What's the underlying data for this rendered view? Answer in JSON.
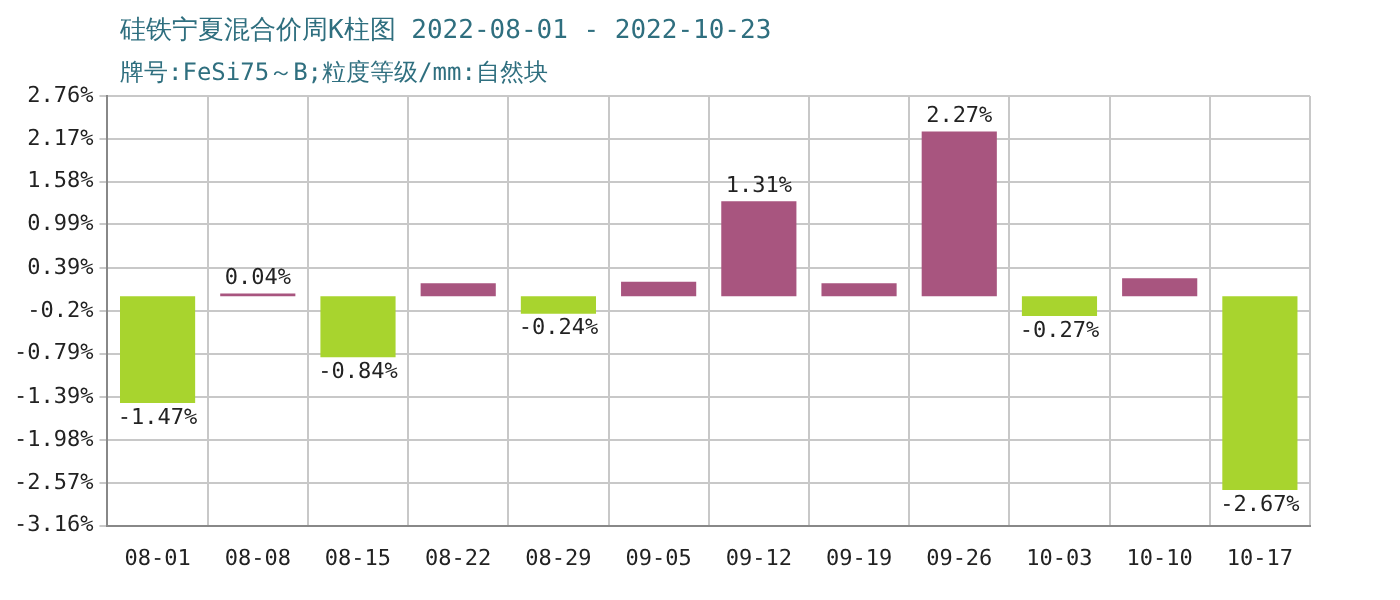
{
  "chart_data": {
    "type": "bar",
    "title": "硅铁宁夏混合价周K柱图 2022-08-01 - 2022-10-23",
    "subtitle": "牌号:FeSi75～B;粒度等级/mm:自然块",
    "categories": [
      "08-01",
      "08-08",
      "08-15",
      "08-22",
      "08-29",
      "09-05",
      "09-12",
      "09-19",
      "09-26",
      "10-03",
      "10-10",
      "10-17"
    ],
    "values": [
      -1.47,
      0.04,
      -0.84,
      0.18,
      -0.24,
      0.2,
      1.31,
      0.18,
      2.27,
      -0.27,
      0.25,
      -2.67
    ],
    "colors": [
      "#a8d42e",
      "#a8557f",
      "#a8d42e",
      "#a8557f",
      "#a8d42e",
      "#a8557f",
      "#a8557f",
      "#a8557f",
      "#a8557f",
      "#a8d42e",
      "#a8557f",
      "#a8d42e"
    ],
    "value_labels": [
      "-1.47%",
      "0.04%",
      "-0.84%",
      null,
      "-0.24%",
      null,
      "1.31%",
      null,
      "2.27%",
      "-0.27%",
      null,
      "-2.67%"
    ],
    "ylim": [
      -3.16,
      2.76
    ],
    "yticks": [
      {
        "value": 2.76,
        "label": "2.76%"
      },
      {
        "value": 2.17,
        "label": "2.17%"
      },
      {
        "value": 1.58,
        "label": "1.58%"
      },
      {
        "value": 0.99,
        "label": "0.99%"
      },
      {
        "value": 0.39,
        "label": "0.39%"
      },
      {
        "value": -0.2,
        "label": "-0.2%"
      },
      {
        "value": -0.79,
        "label": "-0.79%"
      },
      {
        "value": -1.39,
        "label": "-1.39%"
      },
      {
        "value": -1.98,
        "label": "-1.98%"
      },
      {
        "value": -2.57,
        "label": "-2.57%"
      },
      {
        "value": -3.16,
        "label": "-3.16%"
      }
    ],
    "grid": true,
    "legend": false
  }
}
